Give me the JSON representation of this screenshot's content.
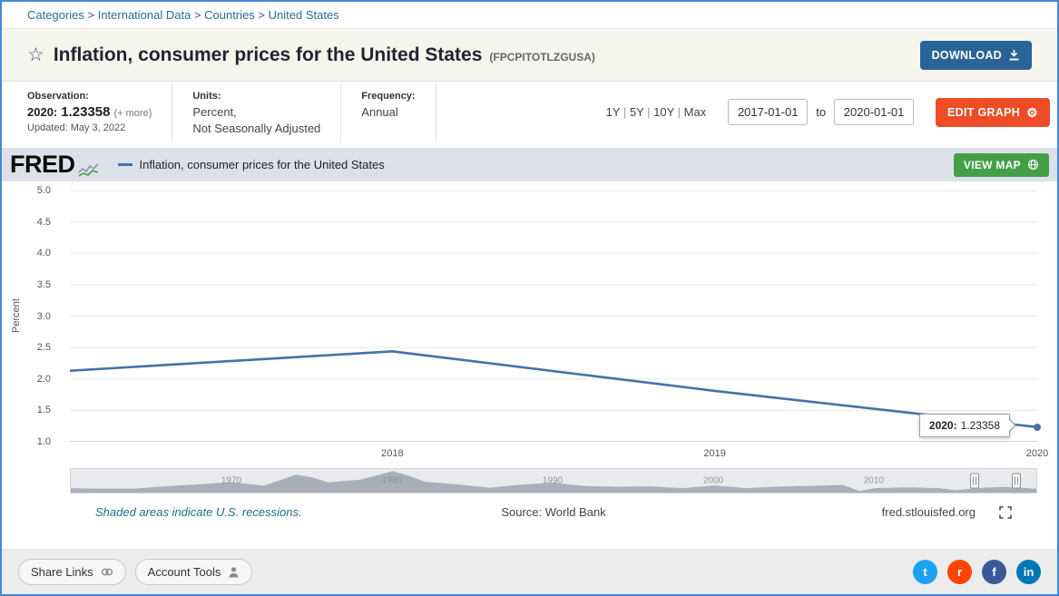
{
  "breadcrumb": {
    "items": [
      "Categories",
      "International Data",
      "Countries",
      "United States"
    ],
    "separator": ">"
  },
  "icons": {
    "star": "☆",
    "gear": "⚙"
  },
  "header": {
    "title": "Inflation, consumer prices for the United States",
    "series_id": "(FPCPITOTLZGUSA)",
    "download_button": "DOWNLOAD"
  },
  "meta": {
    "observation": {
      "label": "Observation:",
      "date": "2020:",
      "value": "1.23358",
      "more": "(+ more)",
      "updated": "Updated: May 3, 2022"
    },
    "units": {
      "label": "Units:",
      "line1": "Percent,",
      "line2": "Not Seasonally Adjusted"
    },
    "frequency": {
      "label": "Frequency:",
      "value": "Annual"
    },
    "ranges": [
      "1Y",
      "5Y",
      "10Y",
      "Max"
    ],
    "range_separator": "|",
    "date_from": "2017-01-01",
    "to_label": "to",
    "date_to": "2020-01-01",
    "edit_button": "EDIT GRAPH"
  },
  "graph_header": {
    "logo": "FRED",
    "legend": "Inflation, consumer prices for the United States",
    "view_map_button": "VIEW MAP"
  },
  "chart_data": {
    "type": "line",
    "title": "Inflation, consumer prices for the United States",
    "ylabel": "Percent",
    "xlabel": "",
    "xlim": [
      2017,
      2020
    ],
    "ylim": [
      1.0,
      5.0
    ],
    "y_ticks": [
      5.0,
      4.5,
      4.0,
      3.5,
      3.0,
      2.5,
      2.0,
      1.5,
      1.0
    ],
    "x_ticks": [
      {
        "year": 2018,
        "label": "2018"
      },
      {
        "year": 2019,
        "label": "2019"
      },
      {
        "year": 2020,
        "label": "2020"
      }
    ],
    "x": [
      2017,
      2018,
      2019,
      2020
    ],
    "values": [
      2.13,
      2.44,
      1.81,
      1.23358
    ],
    "line_color": "#4572a7",
    "grid": true,
    "legend_position": "top-left",
    "tooltip": {
      "label": "2020:",
      "value": "1.23358"
    },
    "minimap": {
      "type": "area",
      "xlim": [
        1960,
        2020
      ],
      "ylim": [
        -1.5,
        15
      ],
      "x": [
        1960,
        1962,
        1964,
        1966,
        1968,
        1970,
        1972,
        1974,
        1975,
        1976,
        1978,
        1980,
        1981,
        1982,
        1984,
        1986,
        1988,
        1990,
        1992,
        1994,
        1996,
        1998,
        2000,
        2002,
        2004,
        2006,
        2008,
        2009,
        2010,
        2012,
        2014,
        2015,
        2016,
        2017,
        2018,
        2019,
        2020
      ],
      "values": [
        1.5,
        1.2,
        1.3,
        3.0,
        4.3,
        5.8,
        3.3,
        11.0,
        9.1,
        5.7,
        7.6,
        13.5,
        10.3,
        6.1,
        4.3,
        1.9,
        4.1,
        5.4,
        3.0,
        2.6,
        2.9,
        1.6,
        3.4,
        1.6,
        2.7,
        3.2,
        3.8,
        -0.4,
        1.6,
        2.1,
        1.6,
        0.1,
        1.3,
        2.1,
        2.4,
        1.8,
        1.2
      ],
      "decade_ticks": [
        {
          "year": 1970,
          "label": "1970"
        },
        {
          "year": 1980,
          "label": "1980"
        },
        {
          "year": 1990,
          "label": "1990"
        },
        {
          "year": 2000,
          "label": "2000"
        },
        {
          "year": 2010,
          "label": "2010"
        }
      ],
      "fill_color": "#a9afb7",
      "handles_at_fraction": [
        0.936,
        0.979
      ]
    }
  },
  "graph_footer": {
    "recessions_note": "Shaded areas indicate U.S. recessions.",
    "source": "Source: World Bank",
    "site": "fred.stlouisfed.org"
  },
  "bottom_bar": {
    "share_links": "Share Links",
    "account_tools": "Account Tools",
    "social": [
      {
        "name": "twitter",
        "glyph": "t",
        "color": "#1da1f2"
      },
      {
        "name": "reddit",
        "glyph": "r",
        "color": "#ff4500"
      },
      {
        "name": "facebook",
        "glyph": "f",
        "color": "#3b5998"
      },
      {
        "name": "linkedin",
        "glyph": "in",
        "color": "#0077b5"
      }
    ]
  },
  "colors": {
    "accent_blue": "#2a6496",
    "edit_orange": "#ee4c27",
    "map_green": "#43a047",
    "line_blue": "#4572a7",
    "header_cream": "#f5f5ee",
    "graphbar_gray": "#dce1e9",
    "link_teal": "#256f91",
    "page_border_blue": "#4688d8"
  }
}
